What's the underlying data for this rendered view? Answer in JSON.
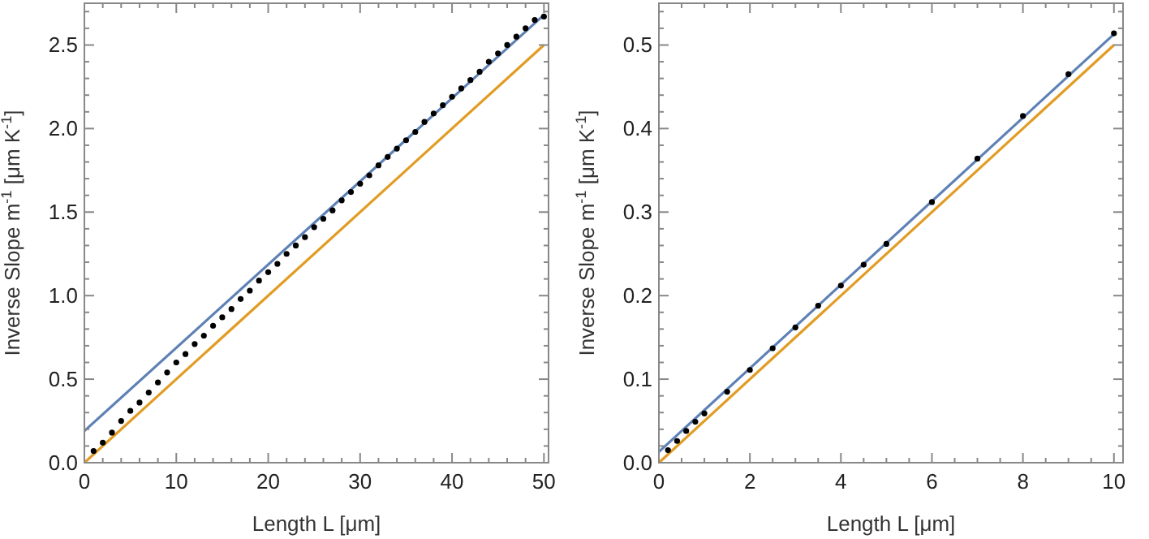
{
  "chart_data": [
    {
      "type": "line",
      "xlabel": "Length L [μm]",
      "ylabel": "Inverse Slope m$^{-1}$ [μm K$^{-1}$]",
      "xlim": [
        0,
        50.5
      ],
      "ylim": [
        0,
        2.75
      ],
      "xticks": [
        0,
        {
          "value": 2,
          "label": null
        },
        {
          "value": 4,
          "label": null
        },
        {
          "value": 6,
          "label": null
        },
        {
          "value": 8,
          "label": null
        },
        10,
        {
          "value": 12,
          "label": null
        },
        {
          "value": 14,
          "label": null
        },
        {
          "value": 16,
          "label": null
        },
        {
          "value": 18,
          "label": null
        },
        20,
        {
          "value": 22,
          "label": null
        },
        {
          "value": 24,
          "label": null
        },
        {
          "value": 26,
          "label": null
        },
        {
          "value": 28,
          "label": null
        },
        30,
        {
          "value": 32,
          "label": null
        },
        {
          "value": 34,
          "label": null
        },
        {
          "value": 36,
          "label": null
        },
        {
          "value": 38,
          "label": null
        },
        40,
        {
          "value": 42,
          "label": null
        },
        {
          "value": 44,
          "label": null
        },
        {
          "value": 46,
          "label": null
        },
        {
          "value": 48,
          "label": null
        },
        50
      ],
      "yticks": [
        {
          "value": 0,
          "label": "0.0"
        },
        {
          "value": 0.1,
          "label": null
        },
        {
          "value": 0.2,
          "label": null
        },
        {
          "value": 0.3,
          "label": null
        },
        {
          "value": 0.4,
          "label": null
        },
        0.5,
        {
          "value": 0.6,
          "label": null
        },
        {
          "value": 0.7,
          "label": null
        },
        {
          "value": 0.8,
          "label": null
        },
        {
          "value": 0.9,
          "label": null
        },
        {
          "value": 1,
          "label": "1.0"
        },
        {
          "value": 1.1,
          "label": null
        },
        {
          "value": 1.2,
          "label": null
        },
        {
          "value": 1.3,
          "label": null
        },
        {
          "value": 1.4,
          "label": null
        },
        1.5,
        {
          "value": 1.6,
          "label": null
        },
        {
          "value": 1.7,
          "label": null
        },
        {
          "value": 1.8,
          "label": null
        },
        {
          "value": 1.9,
          "label": null
        },
        {
          "value": 2,
          "label": "2.0"
        },
        {
          "value": 2.1,
          "label": null
        },
        {
          "value": 2.2,
          "label": null
        },
        {
          "value": 2.3,
          "label": null
        },
        {
          "value": 2.4,
          "label": null
        },
        2.5,
        {
          "value": 2.6,
          "label": null
        },
        {
          "value": 2.7,
          "label": null
        }
      ],
      "grid": false,
      "series": [
        {
          "color": "#5e81b5",
          "x": [
            0,
            50
          ],
          "values": [
            0.19,
            2.68
          ]
        },
        {
          "color": "#e19c24",
          "x": [
            0,
            50
          ],
          "values": [
            0,
            2.5
          ]
        },
        {
          "type": "scatter",
          "marker": "circle",
          "color": "#000000",
          "x": [
            1,
            2,
            3,
            4,
            5,
            6,
            7,
            8,
            9,
            10,
            11,
            12,
            13,
            14,
            15,
            16,
            17,
            18,
            19,
            20,
            21,
            22,
            23,
            24,
            25,
            26,
            27,
            28,
            29,
            30,
            31,
            32,
            33,
            34,
            35,
            36,
            37,
            38,
            39,
            40,
            41,
            42,
            43,
            44,
            45,
            46,
            47,
            48,
            49,
            50
          ],
          "values": [
            0.07,
            0.12,
            0.18,
            0.25,
            0.31,
            0.36,
            0.42,
            0.48,
            0.54,
            0.6,
            0.65,
            0.71,
            0.76,
            0.82,
            0.87,
            0.92,
            0.98,
            1.03,
            1.09,
            1.14,
            1.19,
            1.25,
            1.3,
            1.35,
            1.41,
            1.46,
            1.51,
            1.57,
            1.62,
            1.67,
            1.72,
            1.78,
            1.83,
            1.88,
            1.93,
            1.98,
            2.04,
            2.09,
            2.14,
            2.19,
            2.24,
            2.29,
            2.34,
            2.4,
            2.45,
            2.5,
            2.55,
            2.6,
            2.65,
            2.67
          ]
        }
      ]
    },
    {
      "type": "line",
      "xlabel": "Length L [μm]",
      "ylabel": "Inverse Slope m$^{-1}$ [μm K$^{-1}$]",
      "xlim": [
        0,
        10.2
      ],
      "ylim": [
        0,
        0.55
      ],
      "xticks": [
        0,
        {
          "value": 0.5,
          "label": null
        },
        {
          "value": 1,
          "label": null
        },
        {
          "value": 1.5,
          "label": null
        },
        2,
        {
          "value": 2.5,
          "label": null
        },
        {
          "value": 3,
          "label": null
        },
        {
          "value": 3.5,
          "label": null
        },
        4,
        {
          "value": 4.5,
          "label": null
        },
        {
          "value": 5,
          "label": null
        },
        {
          "value": 5.5,
          "label": null
        },
        6,
        {
          "value": 6.5,
          "label": null
        },
        {
          "value": 7,
          "label": null
        },
        {
          "value": 7.5,
          "label": null
        },
        8,
        {
          "value": 8.5,
          "label": null
        },
        {
          "value": 9,
          "label": null
        },
        {
          "value": 9.5,
          "label": null
        },
        10
      ],
      "yticks": [
        {
          "value": 0,
          "label": "0.0"
        },
        {
          "value": 0.02,
          "label": null
        },
        {
          "value": 0.04,
          "label": null
        },
        {
          "value": 0.06,
          "label": null
        },
        {
          "value": 0.08,
          "label": null
        },
        0.1,
        {
          "value": 0.12,
          "label": null
        },
        {
          "value": 0.14,
          "label": null
        },
        {
          "value": 0.16,
          "label": null
        },
        {
          "value": 0.18,
          "label": null
        },
        0.2,
        {
          "value": 0.22,
          "label": null
        },
        {
          "value": 0.24,
          "label": null
        },
        {
          "value": 0.26,
          "label": null
        },
        {
          "value": 0.28,
          "label": null
        },
        0.3,
        {
          "value": 0.32,
          "label": null
        },
        {
          "value": 0.34,
          "label": null
        },
        {
          "value": 0.36,
          "label": null
        },
        {
          "value": 0.38,
          "label": null
        },
        0.4,
        {
          "value": 0.42,
          "label": null
        },
        {
          "value": 0.44,
          "label": null
        },
        {
          "value": 0.46,
          "label": null
        },
        {
          "value": 0.48,
          "label": null
        },
        0.5,
        {
          "value": 0.52,
          "label": null
        },
        {
          "value": 0.54,
          "label": null
        }
      ],
      "grid": false,
      "series": [
        {
          "color": "#5e81b5",
          "x": [
            0,
            10
          ],
          "values": [
            0.013,
            0.513
          ]
        },
        {
          "color": "#e19c24",
          "x": [
            0,
            10
          ],
          "values": [
            0,
            0.5
          ]
        },
        {
          "type": "scatter",
          "marker": "circle",
          "color": "#000000",
          "x": [
            0.2,
            0.4,
            0.6,
            0.8,
            1,
            1.5,
            2,
            2.5,
            3,
            3.5,
            4,
            4.5,
            5,
            6,
            7,
            8,
            9,
            10
          ],
          "values": [
            0.015,
            0.026,
            0.038,
            0.049,
            0.059,
            0.085,
            0.111,
            0.137,
            0.162,
            0.188,
            0.212,
            0.237,
            0.262,
            0.312,
            0.364,
            0.415,
            0.465,
            0.514
          ]
        }
      ]
    }
  ]
}
